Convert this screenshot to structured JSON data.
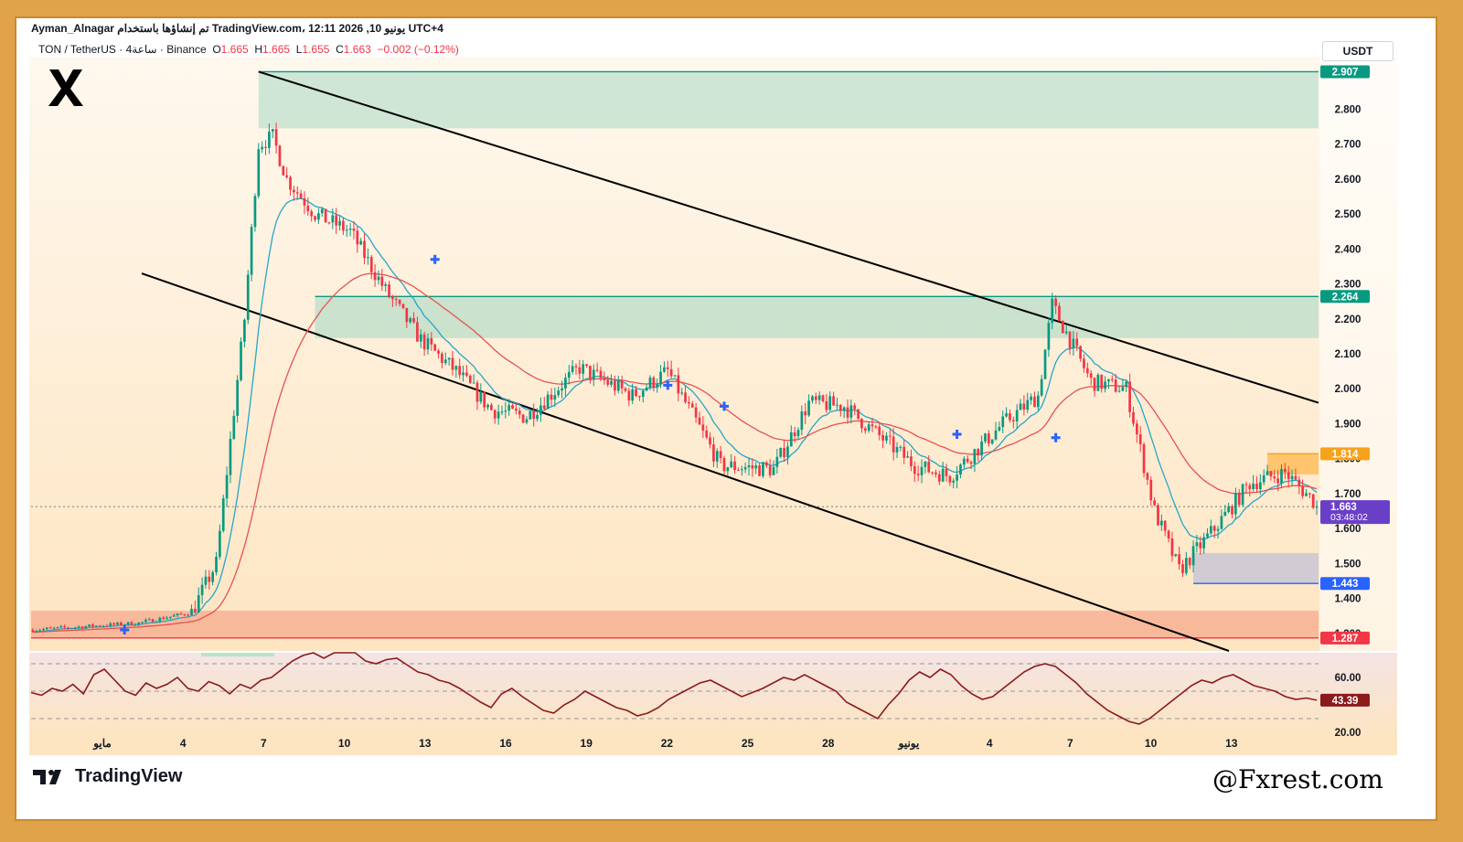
{
  "header": {
    "user": "Ayman_Alnagar",
    "published_text": "تم إنشاؤها باستخدام TradingView.com، 12:11 2026 ,10 يونيو UTC+4"
  },
  "symbol": {
    "pair": "TON / TetherUS",
    "interval": "4ساعة",
    "exchange": "Binance",
    "open_label": "O",
    "open": "1.665",
    "high_label": "H",
    "high": "1.665",
    "low_label": "L",
    "low": "1.655",
    "close_label": "C",
    "close": "1.663",
    "change": "−0.002 (−0.12%)"
  },
  "currency_button": "USDT",
  "branding": {
    "tradingview": "TradingView",
    "watermark": "@Fxrest.com"
  },
  "colors": {
    "up": "#089981",
    "down": "#f23645",
    "ema_fast": "#26a6c9",
    "ema_slow": "#e65252",
    "supply_zone": "#a8d8c4",
    "support_zone": "#f5a98e",
    "flag_zone": "#ffb74d",
    "demand_zone": "#c9c6d6",
    "rsi": "#8b1a1a",
    "accent": "#6a3fc8"
  },
  "chart_data": [
    {
      "type": "candlestick",
      "title": "TON / TetherUS",
      "ylim": [
        1.25,
        2.95
      ],
      "y_ticks": [
        "2.800",
        "2.700",
        "2.600",
        "2.500",
        "2.400",
        "2.300",
        "2.200",
        "2.100",
        "2.000",
        "1.900",
        "1.800",
        "1.700",
        "1.600",
        "1.500",
        "1.400",
        "1.300"
      ],
      "x_ticks": [
        "مايو",
        "4",
        "7",
        "10",
        "13",
        "16",
        "19",
        "22",
        "25",
        "28",
        "يونيو",
        "4",
        "7",
        "10",
        "13"
      ],
      "price_labels": [
        {
          "value": 2.907,
          "text": "2.907",
          "color": "#089981"
        },
        {
          "value": 2.264,
          "text": "2.264",
          "color": "#089981"
        },
        {
          "value": 1.814,
          "text": "1.814",
          "color": "#f7a21b"
        },
        {
          "value": 1.443,
          "text": "1.443",
          "color": "#2962ff"
        },
        {
          "value": 1.287,
          "text": "1.287",
          "color": "#f23645"
        }
      ],
      "current_price": {
        "value": 1.663,
        "text": "1.663",
        "countdown": "03:48:02"
      },
      "zones": [
        {
          "name": "top-supply",
          "from": 2.745,
          "to": 2.907
        },
        {
          "name": "mid-supply",
          "from": 2.145,
          "to": 2.264
        },
        {
          "name": "flag",
          "from": 1.755,
          "to": 1.814
        },
        {
          "name": "demand",
          "from": 1.443,
          "to": 1.53
        },
        {
          "name": "base-support",
          "from": 1.287,
          "to": 1.365
        }
      ],
      "waypoints": [
        [
          0,
          1.31
        ],
        [
          30,
          1.33
        ],
        [
          45,
          1.36
        ],
        [
          52,
          1.5
        ],
        [
          56,
          1.85
        ],
        [
          60,
          2.2
        ],
        [
          64,
          2.7
        ],
        [
          68,
          2.72
        ],
        [
          72,
          2.6
        ],
        [
          80,
          2.5
        ],
        [
          90,
          2.45
        ],
        [
          100,
          2.28
        ],
        [
          110,
          2.14
        ],
        [
          120,
          2.05
        ],
        [
          130,
          1.94
        ],
        [
          140,
          1.92
        ],
        [
          155,
          2.06
        ],
        [
          170,
          1.98
        ],
        [
          180,
          2.05
        ],
        [
          195,
          1.78
        ],
        [
          210,
          1.77
        ],
        [
          220,
          1.96
        ],
        [
          230,
          1.95
        ],
        [
          250,
          1.78
        ],
        [
          260,
          1.75
        ],
        [
          265,
          1.8
        ],
        [
          275,
          1.9
        ],
        [
          285,
          1.98
        ],
        [
          289,
          2.24
        ],
        [
          300,
          2.02
        ],
        [
          310,
          2.0
        ],
        [
          318,
          1.65
        ],
        [
          325,
          1.48
        ],
        [
          335,
          1.6
        ],
        [
          345,
          1.73
        ],
        [
          355,
          1.76
        ],
        [
          365,
          1.66
        ]
      ],
      "n_candles": 365,
      "mid_supply_start_candle": 80
    },
    {
      "type": "line",
      "title": "RSI",
      "ylim": [
        18,
        78
      ],
      "y_ticks": [
        "60.00",
        "20.00"
      ],
      "levels": [
        70,
        50,
        30
      ],
      "current": "43.39",
      "values": [
        49,
        47,
        52,
        50,
        55,
        48,
        62,
        66,
        58,
        50,
        47,
        56,
        52,
        55,
        60,
        52,
        50,
        57,
        54,
        48,
        55,
        52,
        58,
        60,
        66,
        72,
        76,
        80,
        74,
        78,
        80,
        78,
        72,
        70,
        73,
        74,
        69,
        64,
        62,
        58,
        56,
        52,
        47,
        42,
        38,
        48,
        52,
        46,
        41,
        36,
        34,
        40,
        44,
        50,
        46,
        42,
        38,
        36,
        32,
        34,
        38,
        44,
        48,
        52,
        56,
        58,
        54,
        50,
        46,
        49,
        52,
        56,
        60,
        58,
        62,
        58,
        54,
        50,
        42,
        38,
        34,
        30,
        40,
        48,
        58,
        64,
        60,
        66,
        62,
        54,
        48,
        44,
        46,
        52,
        58,
        64,
        68,
        70,
        68,
        62,
        56,
        48,
        42,
        36,
        32,
        28,
        26,
        30,
        36,
        42,
        48,
        54,
        58,
        56,
        60,
        62,
        58,
        54,
        52,
        50,
        46,
        44,
        45,
        43.39
      ]
    }
  ]
}
